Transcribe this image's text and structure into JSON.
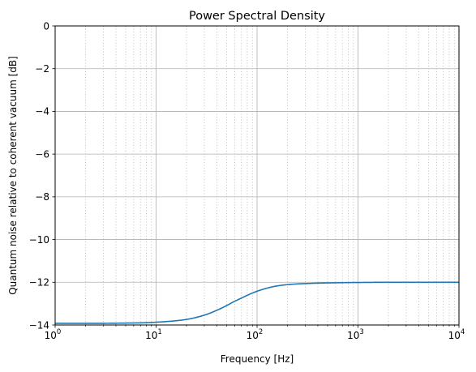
{
  "chart_data": {
    "type": "line",
    "title": "Power Spectral Density",
    "xlabel": "Frequency [Hz]",
    "ylabel": "Quantum noise relative to coherent vacuum [dB]",
    "xscale": "log",
    "xlim": [
      1,
      10000
    ],
    "ylim": [
      -14,
      0
    ],
    "x_ticks": [
      {
        "value": 1,
        "base": "10",
        "exp": "0"
      },
      {
        "value": 10,
        "base": "10",
        "exp": "1"
      },
      {
        "value": 100,
        "base": "10",
        "exp": "2"
      },
      {
        "value": 1000,
        "base": "10",
        "exp": "3"
      },
      {
        "value": 10000,
        "base": "10",
        "exp": "4"
      }
    ],
    "y_ticks": [
      {
        "value": 0,
        "label": "0"
      },
      {
        "value": -2,
        "label": "−2"
      },
      {
        "value": -4,
        "label": "−4"
      },
      {
        "value": -6,
        "label": "−6"
      },
      {
        "value": -8,
        "label": "−8"
      },
      {
        "value": -10,
        "label": "−10"
      },
      {
        "value": -12,
        "label": "−12"
      },
      {
        "value": -14,
        "label": "−14"
      }
    ],
    "grid": {
      "major": true,
      "minor_x": true
    },
    "series": [
      {
        "color": "#1f77b4",
        "x": [
          1,
          2,
          3,
          5,
          7,
          10,
          15,
          20,
          30,
          40,
          50,
          60,
          70,
          80,
          100,
          150,
          200,
          300,
          500,
          1000,
          2000,
          5000,
          10000
        ],
        "values": [
          -13.92,
          -13.92,
          -13.92,
          -13.91,
          -13.9,
          -13.87,
          -13.81,
          -13.74,
          -13.54,
          -13.31,
          -13.09,
          -12.89,
          -12.74,
          -12.61,
          -12.42,
          -12.19,
          -12.11,
          -12.06,
          -12.03,
          -12.01,
          -12.0,
          -12.0,
          -12.0
        ]
      }
    ]
  },
  "style": {
    "line_color": "#1f77b4",
    "major_grid_color": "#b0b0b0",
    "minor_grid_color": "#b0b0b0",
    "axis_color": "#000000"
  }
}
